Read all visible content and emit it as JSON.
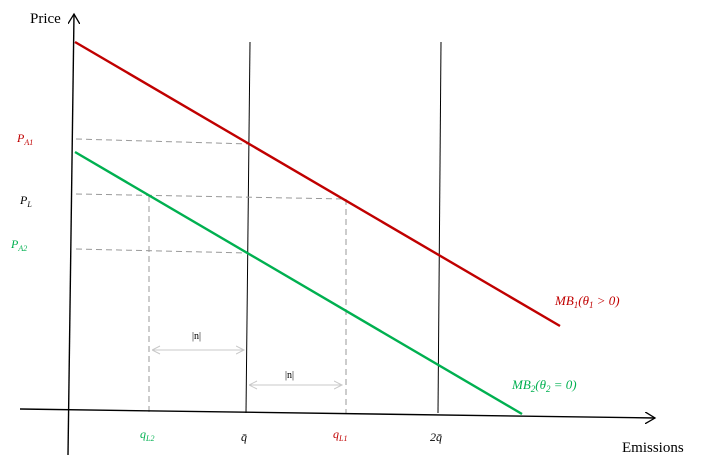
{
  "axes": {
    "y_label": "Price",
    "x_label": "Emissions"
  },
  "price_labels": {
    "pa1": {
      "main": "P",
      "sub": "A1"
    },
    "pl": {
      "main": "P",
      "sub": "L"
    },
    "pa2": {
      "main": "P",
      "sub": "A2"
    }
  },
  "quantity_labels": {
    "ql2": {
      "main": "q",
      "sub": "L2"
    },
    "qbar": "q̄",
    "ql1": {
      "main": "q",
      "sub": "L1"
    },
    "two_qbar": "2q̄"
  },
  "curves": {
    "mb1": {
      "pre": "MB",
      "sub": "1",
      "open": "(θ",
      "sub2": "1",
      "rest": " > 0)"
    },
    "mb2": {
      "pre": "MB",
      "sub": "2",
      "open": "(θ",
      "sub2": "2",
      "rest": " = 0)"
    }
  },
  "gap_labels": {
    "gap1": "|n|",
    "gap2": "|n|"
  },
  "colors": {
    "mb1": "#c00000",
    "mb2": "#00b050",
    "axis": "#000000",
    "dashed": "#999999",
    "gap": "#cfcfcf"
  }
}
